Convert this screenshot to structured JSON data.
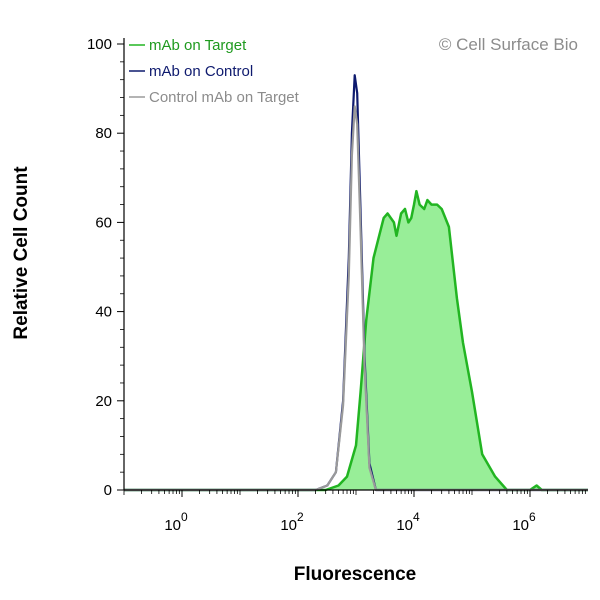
{
  "chart_data": {
    "type": "area",
    "watermark": "© Cell Surface Bio",
    "xlabel": "Fluorescence",
    "ylabel": "Relative Cell Count",
    "x_scale": "log",
    "xlim": [
      0.1,
      10000000
    ],
    "ylim": [
      0,
      100
    ],
    "x_ticks": [
      {
        "base": "10",
        "exp": "0",
        "value": 1
      },
      {
        "base": "10",
        "exp": "2",
        "value": 100
      },
      {
        "base": "10",
        "exp": "4",
        "value": 10000
      },
      {
        "base": "10",
        "exp": "6",
        "value": 1000000
      }
    ],
    "y_ticks": [
      "0",
      "20",
      "40",
      "60",
      "80",
      "100"
    ],
    "y_tick_values": [
      0,
      20,
      40,
      60,
      80,
      100
    ],
    "grid": false,
    "legend_position": "top-left",
    "series": [
      {
        "name": "mAb on Target",
        "color": "#22b522",
        "fill": "#98ee98",
        "filled": true,
        "points": [
          [
            0.1,
            0
          ],
          [
            100,
            0
          ],
          [
            300,
            0
          ],
          [
            500,
            1
          ],
          [
            700,
            3
          ],
          [
            1000,
            10
          ],
          [
            1200,
            22
          ],
          [
            1500,
            38
          ],
          [
            2000,
            52
          ],
          [
            3000,
            61
          ],
          [
            3500,
            62
          ],
          [
            4500,
            60
          ],
          [
            5000,
            57
          ],
          [
            6000,
            62
          ],
          [
            7000,
            63
          ],
          [
            8000,
            60
          ],
          [
            9000,
            61
          ],
          [
            10000,
            64
          ],
          [
            11000,
            67
          ],
          [
            12500,
            64
          ],
          [
            15000,
            63
          ],
          [
            17000,
            65
          ],
          [
            20000,
            64
          ],
          [
            25000,
            64
          ],
          [
            30000,
            63
          ],
          [
            40000,
            59
          ],
          [
            55000,
            43
          ],
          [
            70000,
            33
          ],
          [
            100000,
            22
          ],
          [
            150000,
            8
          ],
          [
            250000,
            3
          ],
          [
            400000,
            0
          ],
          [
            600000,
            0
          ],
          [
            1000000,
            0
          ],
          [
            1300000,
            1
          ],
          [
            1600000,
            0
          ],
          [
            10000000,
            0
          ]
        ]
      },
      {
        "name": "mAb on Control",
        "color": "#0e1a6e",
        "filled": false,
        "points": [
          [
            0.1,
            0
          ],
          [
            200,
            0
          ],
          [
            320,
            1
          ],
          [
            450,
            4
          ],
          [
            600,
            20
          ],
          [
            750,
            52
          ],
          [
            850,
            80
          ],
          [
            950,
            93
          ],
          [
            1050,
            89
          ],
          [
            1200,
            62
          ],
          [
            1400,
            30
          ],
          [
            1700,
            6
          ],
          [
            2200,
            0
          ],
          [
            10000000,
            0
          ]
        ]
      },
      {
        "name": "Control mAb on Target",
        "color": "#9a9a9a",
        "filled": false,
        "points": [
          [
            0.1,
            0
          ],
          [
            200,
            0
          ],
          [
            320,
            1
          ],
          [
            450,
            4
          ],
          [
            600,
            19
          ],
          [
            750,
            48
          ],
          [
            850,
            75
          ],
          [
            950,
            86
          ],
          [
            1050,
            82
          ],
          [
            1200,
            58
          ],
          [
            1400,
            28
          ],
          [
            1700,
            5
          ],
          [
            2200,
            0
          ],
          [
            10000000,
            0
          ]
        ]
      }
    ]
  }
}
